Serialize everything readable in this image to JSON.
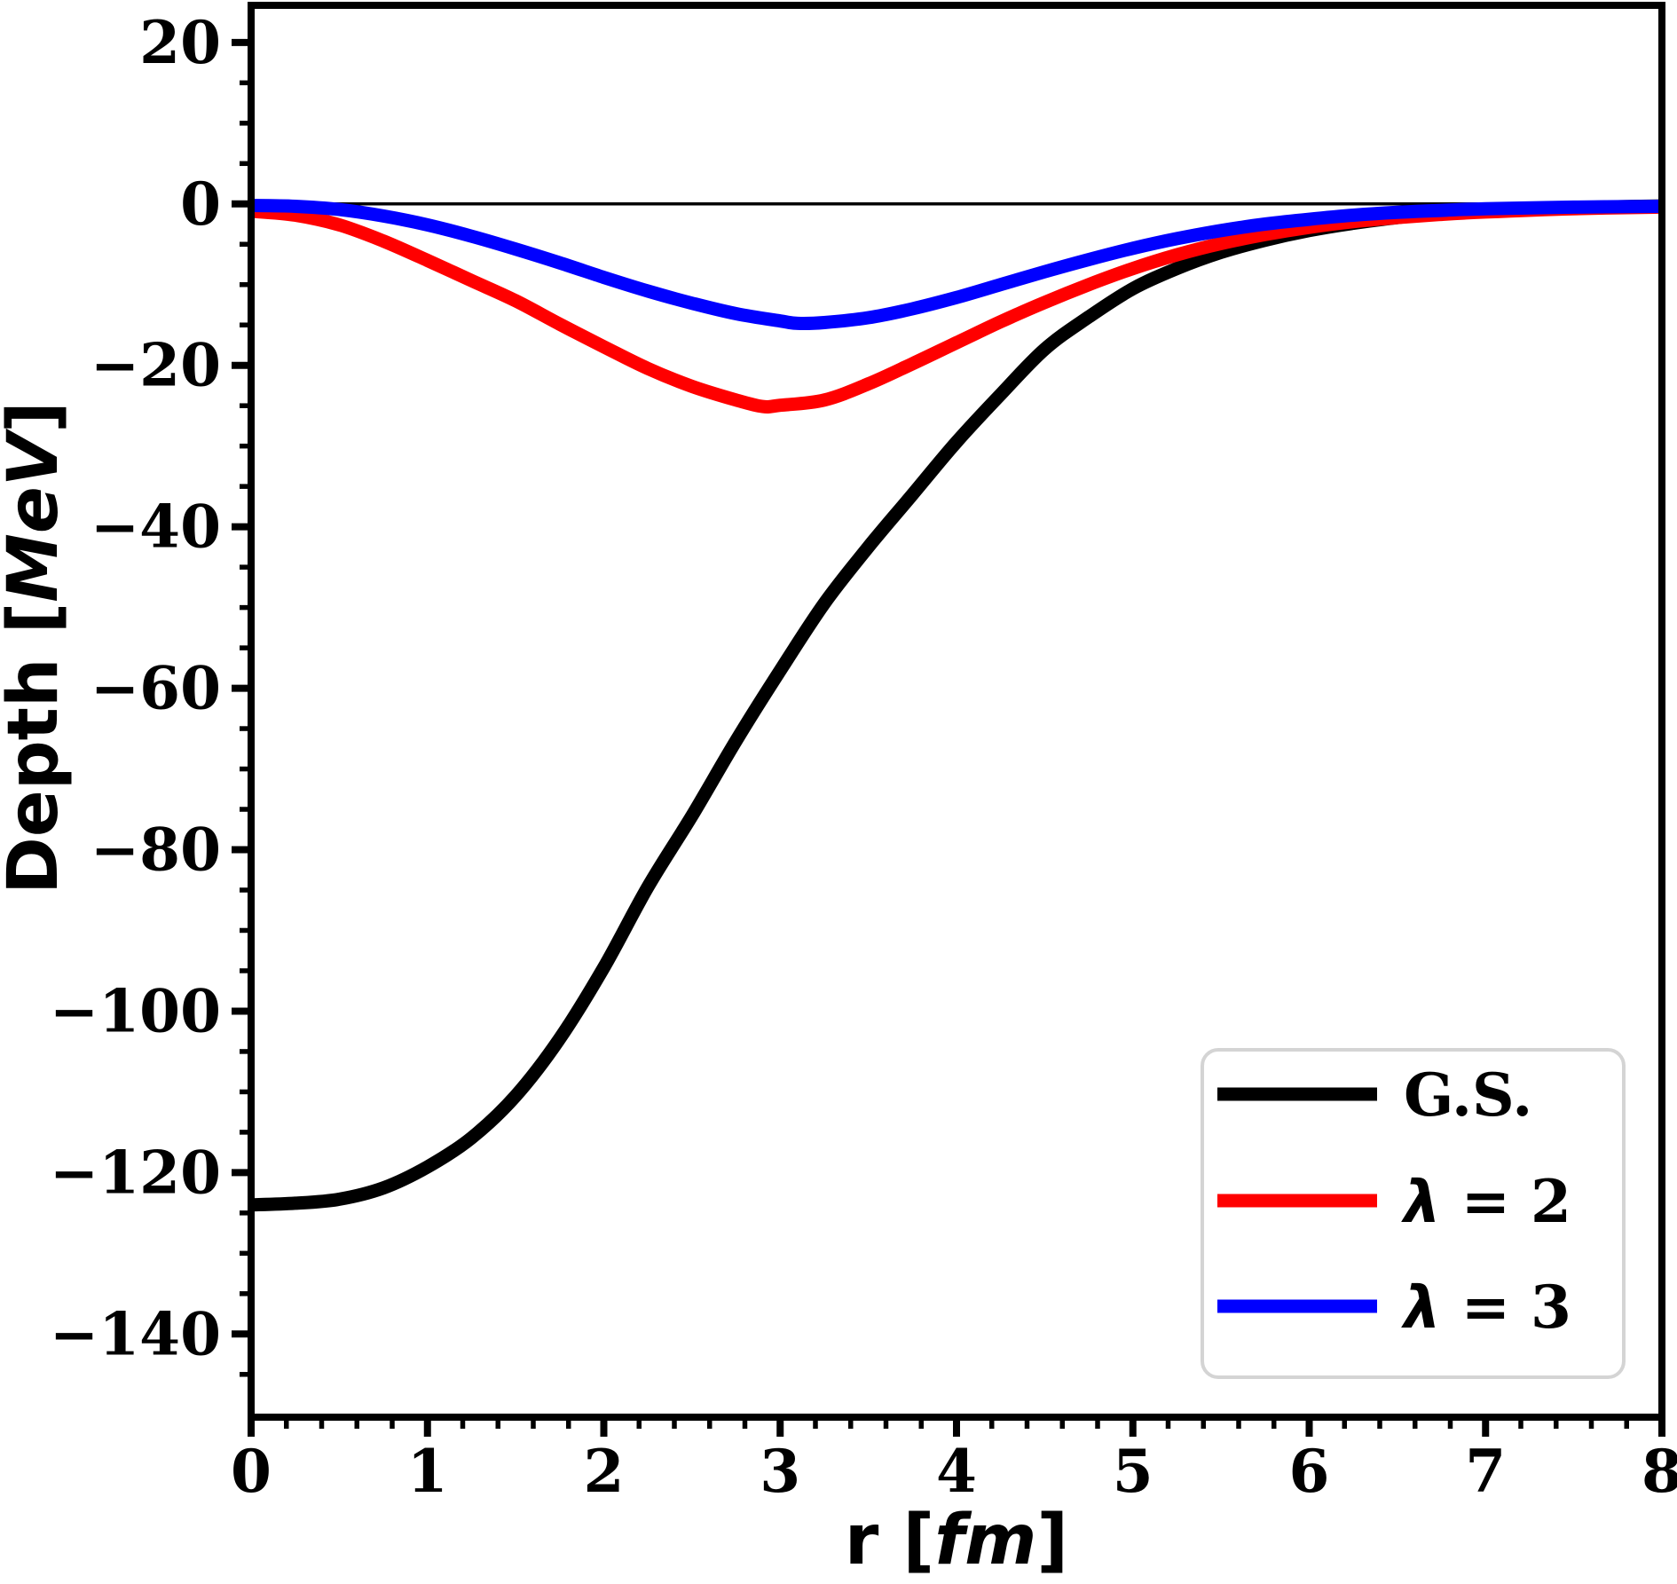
{
  "chart_data": {
    "type": "line",
    "title": "",
    "xlabel": "r [fm]",
    "ylabel": "Depth [MeV]",
    "axes": {
      "xlabel_parts": {
        "prefix": "r [",
        "unit": "fm",
        "suffix": "]"
      },
      "ylabel_parts": {
        "prefix": "Depth [",
        "unit": "MeV",
        "suffix": "]"
      },
      "x": {
        "lim": [
          0,
          8
        ],
        "minor_step": 0.2,
        "ticks": [
          {
            "v": 0,
            "label": "0"
          },
          {
            "v": 1,
            "label": "1"
          },
          {
            "v": 2,
            "label": "2"
          },
          {
            "v": 3,
            "label": "3"
          },
          {
            "v": 4,
            "label": "4"
          },
          {
            "v": 5,
            "label": "5"
          },
          {
            "v": 6,
            "label": "6"
          },
          {
            "v": 7,
            "label": "7"
          },
          {
            "v": 8,
            "label": "8"
          }
        ]
      },
      "y": {
        "lim": [
          -150.3,
          24.6
        ],
        "minor_step": 5,
        "ticks": [
          {
            "v": 20,
            "label": "20"
          },
          {
            "v": 0,
            "label": "0"
          },
          {
            "v": -20,
            "label": "−20"
          },
          {
            "v": -40,
            "label": "−40"
          },
          {
            "v": -60,
            "label": "−60"
          },
          {
            "v": -80,
            "label": "−80"
          },
          {
            "v": -100,
            "label": "−100"
          },
          {
            "v": -120,
            "label": "−120"
          },
          {
            "v": -140,
            "label": "−140"
          }
        ]
      },
      "zero_line": 0,
      "grid": false
    },
    "legend_position": "lower right",
    "series": [
      {
        "name": "G.S.",
        "color": "#000000",
        "points": [
          [
            0,
            -124.0
          ],
          [
            0.25,
            -123.8
          ],
          [
            0.5,
            -123.3
          ],
          [
            0.75,
            -121.9
          ],
          [
            1,
            -119.3
          ],
          [
            1.25,
            -115.7
          ],
          [
            1.5,
            -110.5
          ],
          [
            1.75,
            -103.4
          ],
          [
            2,
            -94.6
          ],
          [
            2.25,
            -84.6
          ],
          [
            2.5,
            -75.8
          ],
          [
            2.75,
            -66.5
          ],
          [
            3,
            -57.8
          ],
          [
            3.25,
            -49.5
          ],
          [
            3.5,
            -42.5
          ],
          [
            3.75,
            -36.0
          ],
          [
            4,
            -29.5
          ],
          [
            4.25,
            -23.6
          ],
          [
            4.5,
            -18.0
          ],
          [
            4.75,
            -14.0
          ],
          [
            5,
            -10.5
          ],
          [
            5.25,
            -8.0
          ],
          [
            5.5,
            -6.0
          ],
          [
            5.75,
            -4.5
          ],
          [
            6,
            -3.3
          ],
          [
            6.25,
            -2.4
          ],
          [
            6.5,
            -1.7
          ],
          [
            6.75,
            -1.2
          ],
          [
            7,
            -0.85
          ],
          [
            7.25,
            -0.6
          ],
          [
            7.5,
            -0.45
          ],
          [
            7.75,
            -0.35
          ],
          [
            8,
            -0.25
          ]
        ]
      },
      {
        "name": "λ = 2",
        "color": "#ff0000",
        "points": [
          [
            0,
            -0.9
          ],
          [
            0.25,
            -1.4
          ],
          [
            0.5,
            -2.6
          ],
          [
            0.75,
            -4.6
          ],
          [
            1,
            -7.0
          ],
          [
            1.25,
            -9.5
          ],
          [
            1.5,
            -12.0
          ],
          [
            1.75,
            -14.9
          ],
          [
            2,
            -17.7
          ],
          [
            2.25,
            -20.4
          ],
          [
            2.5,
            -22.6
          ],
          [
            2.75,
            -24.3
          ],
          [
            2.9,
            -25.1
          ],
          [
            3,
            -24.95
          ],
          [
            3.25,
            -24.3
          ],
          [
            3.5,
            -22.3
          ],
          [
            3.75,
            -19.8
          ],
          [
            4,
            -17.2
          ],
          [
            4.25,
            -14.6
          ],
          [
            4.5,
            -12.2
          ],
          [
            4.75,
            -10.0
          ],
          [
            5,
            -8.0
          ],
          [
            5.25,
            -6.3
          ],
          [
            5.5,
            -4.9
          ],
          [
            5.75,
            -3.8
          ],
          [
            6,
            -2.9
          ],
          [
            6.25,
            -2.2
          ],
          [
            6.5,
            -1.7
          ],
          [
            6.75,
            -1.3
          ],
          [
            7,
            -1.0
          ],
          [
            7.5,
            -0.6
          ],
          [
            8,
            -0.4
          ]
        ]
      },
      {
        "name": "λ = 3",
        "color": "#0000ff",
        "points": [
          [
            0,
            -0.2
          ],
          [
            0.25,
            -0.3
          ],
          [
            0.5,
            -0.7
          ],
          [
            0.75,
            -1.5
          ],
          [
            1,
            -2.6
          ],
          [
            1.25,
            -4.0
          ],
          [
            1.5,
            -5.6
          ],
          [
            1.75,
            -7.3
          ],
          [
            2,
            -9.1
          ],
          [
            2.25,
            -10.8
          ],
          [
            2.5,
            -12.3
          ],
          [
            2.75,
            -13.6
          ],
          [
            3,
            -14.5
          ],
          [
            3.1,
            -14.8
          ],
          [
            3.25,
            -14.7
          ],
          [
            3.5,
            -14.1
          ],
          [
            3.75,
            -13.0
          ],
          [
            4,
            -11.6
          ],
          [
            4.25,
            -10.0
          ],
          [
            4.5,
            -8.4
          ],
          [
            4.75,
            -6.9
          ],
          [
            5,
            -5.5
          ],
          [
            5.25,
            -4.3
          ],
          [
            5.5,
            -3.3
          ],
          [
            5.75,
            -2.5
          ],
          [
            6,
            -1.9
          ],
          [
            6.25,
            -1.4
          ],
          [
            6.5,
            -1.05
          ],
          [
            6.75,
            -0.8
          ],
          [
            7,
            -0.6
          ],
          [
            7.5,
            -0.4
          ],
          [
            8,
            -0.3
          ]
        ]
      }
    ]
  },
  "legend": {
    "entries": [
      {
        "sym": "",
        "text": "G.S.",
        "color": "#000000"
      },
      {
        "sym": "λ",
        "text": " = 2",
        "color": "#ff0000"
      },
      {
        "sym": "λ",
        "text": " = 3",
        "color": "#0000ff"
      }
    ],
    "border_color": "#d4d4d4",
    "background": "#ffffff"
  },
  "style": {
    "curve_width": 15,
    "zero_line_width": 3.5,
    "spine_width": 8,
    "axis_color": "#000000"
  }
}
